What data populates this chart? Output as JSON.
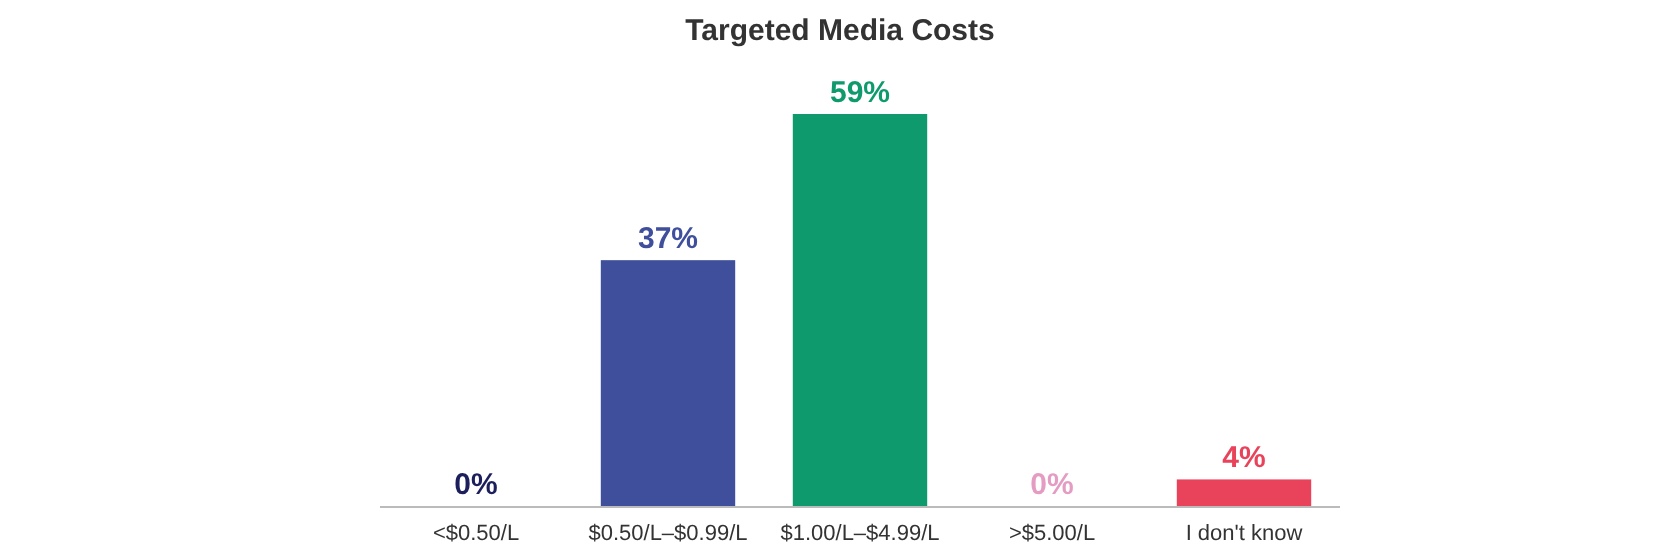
{
  "chart_data": {
    "type": "bar",
    "title": "Targeted Media Costs",
    "categories": [
      "<$0.50/L",
      "$0.50/L–$0.99/L",
      "$1.00/L–$4.99/L",
      ">$5.00/L",
      "I don't know"
    ],
    "values": [
      0,
      37,
      59,
      0,
      4
    ],
    "value_labels": [
      "0%",
      "37%",
      "59%",
      "0%",
      "4%"
    ],
    "colors": [
      "#1c1f5c",
      "#3f4f9c",
      "#0e9a6c",
      "#e59cc2",
      "#e8435a"
    ]
  }
}
